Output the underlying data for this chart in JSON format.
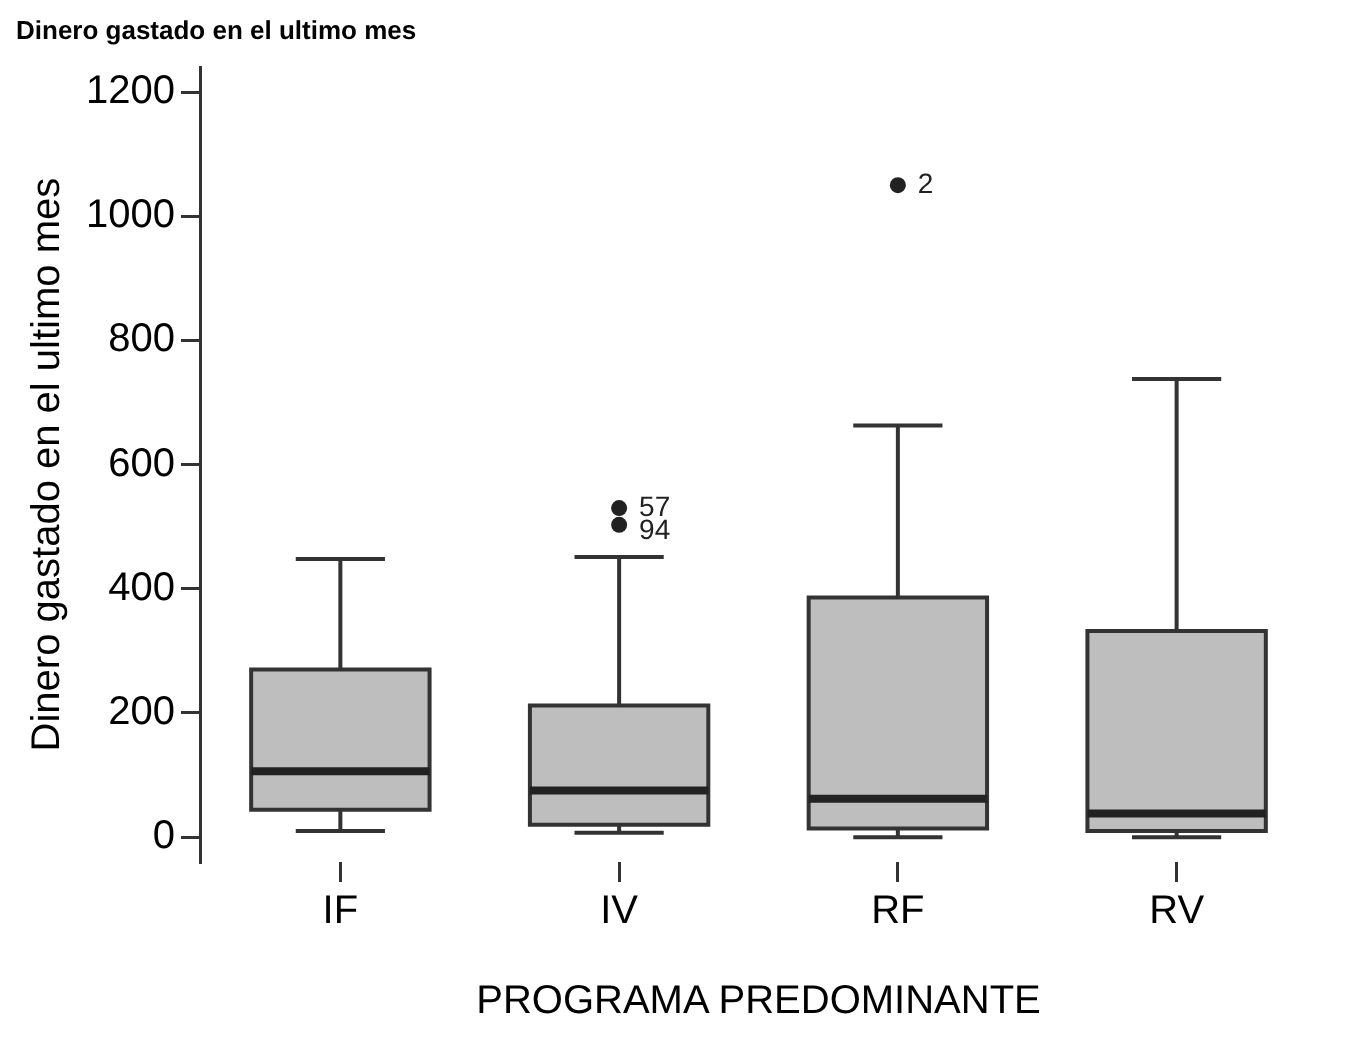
{
  "chart_data": {
    "type": "box",
    "title": "Dinero gastado en el ultimo mes",
    "xlabel": "PROGRAMA PREDOMINANTE",
    "ylabel": "Dinero gastado en el ultimo mes",
    "categories": [
      "IF",
      "IV",
      "RF",
      "RV"
    ],
    "series": [
      {
        "color": "#bebebe",
        "boxes": [
          {
            "low": 10,
            "q1": 44,
            "median": 106,
            "q3": 270,
            "high": 448
          },
          {
            "low": 7,
            "q1": 20,
            "median": 75,
            "q3": 212,
            "high": 451,
            "outliers": [
              530,
              503
            ]
          },
          {
            "low": 0,
            "q1": 14,
            "median": 62,
            "q3": 386,
            "high": 663,
            "outliers": [
              1050
            ]
          },
          {
            "low": 0,
            "q1": 10,
            "median": 38,
            "q3": 332,
            "high": 738
          }
        ]
      }
    ],
    "annotations": [
      "57",
      "94",
      "2"
    ],
    "ylim": [
      -40,
      1240
    ],
    "yticks": [
      0,
      200,
      400,
      600,
      800,
      1000,
      1200
    ],
    "grid": false,
    "legend": false
  }
}
